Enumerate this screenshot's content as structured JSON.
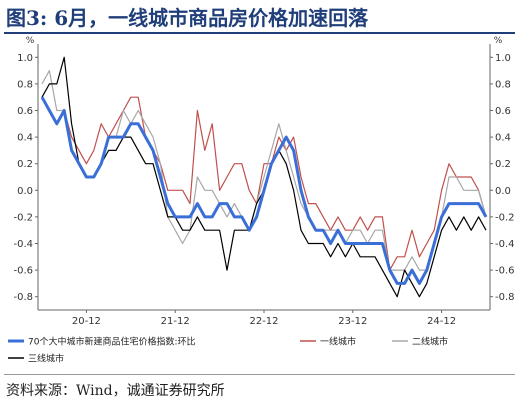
{
  "figure": {
    "title": "图3:   6月，一线城市商品房价格加速回落",
    "source": "资料来源：Wind，诚通证券研究所"
  },
  "chart_data": {
    "type": "line",
    "unit_left": "%",
    "unit_right": "%",
    "ylim": [
      -0.9,
      1.1
    ],
    "yticks": [
      -0.8,
      -0.6,
      -0.4,
      -0.2,
      0.0,
      0.2,
      0.4,
      0.6,
      0.8,
      1.0
    ],
    "ytick_labels": [
      "-0.8",
      "-0.6",
      "-0.4",
      "-0.2",
      "0.0",
      "0.2",
      "0.4",
      "0.6",
      "0.8",
      "1.0"
    ],
    "xtick_labels": [
      "20-12",
      "21-12",
      "22-12",
      "23-12",
      "24-12"
    ],
    "xtick_index": [
      6,
      18,
      30,
      42,
      54
    ],
    "grid": false,
    "legend_position": "bottom",
    "series": [
      {
        "name": "70个大中城市新建商品住宅价格指数:环比",
        "color": "#3b6fd8",
        "width": 3,
        "values": [
          0.7,
          0.6,
          0.5,
          0.6,
          0.3,
          0.2,
          0.1,
          0.1,
          0.2,
          0.4,
          0.4,
          0.4,
          0.5,
          0.5,
          0.4,
          0.3,
          0.1,
          -0.1,
          -0.2,
          -0.2,
          -0.2,
          -0.1,
          -0.2,
          -0.2,
          -0.1,
          -0.1,
          -0.2,
          -0.2,
          -0.3,
          -0.2,
          0.0,
          0.2,
          0.3,
          0.4,
          0.3,
          0.0,
          -0.2,
          -0.3,
          -0.3,
          -0.4,
          -0.3,
          -0.4,
          -0.4,
          -0.4,
          -0.4,
          -0.4,
          -0.4,
          -0.6,
          -0.7,
          -0.7,
          -0.6,
          -0.7,
          -0.6,
          -0.4,
          -0.2,
          -0.1,
          -0.1,
          -0.1,
          -0.1,
          -0.1,
          -0.2
        ]
      },
      {
        "name": "一线城市",
        "color": "#c0504d",
        "width": 1.2,
        "values": [
          0.7,
          0.6,
          0.5,
          0.6,
          0.4,
          0.3,
          0.2,
          0.3,
          0.5,
          0.4,
          0.5,
          0.6,
          0.7,
          0.7,
          0.4,
          0.3,
          0.2,
          0.0,
          0.0,
          0.0,
          -0.1,
          0.6,
          0.3,
          0.5,
          0.0,
          0.1,
          0.2,
          0.2,
          0.0,
          -0.1,
          0.2,
          0.2,
          0.4,
          0.3,
          0.4,
          0.1,
          -0.1,
          -0.1,
          -0.2,
          -0.3,
          -0.2,
          -0.3,
          -0.3,
          -0.2,
          -0.3,
          -0.2,
          -0.2,
          -0.6,
          -0.5,
          -0.5,
          -0.3,
          -0.5,
          -0.4,
          -0.3,
          0.0,
          0.2,
          0.1,
          0.1,
          0.1,
          0.0,
          -0.2
        ]
      },
      {
        "name": "二线城市",
        "color": "#a8a8a8",
        "width": 1.2,
        "values": [
          0.8,
          0.9,
          0.6,
          0.6,
          0.3,
          0.2,
          0.1,
          0.1,
          0.2,
          0.4,
          0.4,
          0.6,
          0.5,
          0.6,
          0.5,
          0.4,
          0.2,
          -0.2,
          -0.3,
          -0.4,
          -0.3,
          0.1,
          0.0,
          0.0,
          -0.1,
          -0.2,
          -0.1,
          -0.2,
          -0.3,
          -0.1,
          0.1,
          0.3,
          0.5,
          0.3,
          0.1,
          -0.1,
          -0.2,
          -0.3,
          -0.3,
          -0.3,
          -0.3,
          -0.4,
          -0.3,
          -0.3,
          -0.4,
          -0.3,
          -0.3,
          -0.6,
          -0.6,
          -0.6,
          -0.5,
          -0.6,
          -0.6,
          -0.4,
          -0.2,
          0.1,
          0.1,
          0.0,
          0.0,
          0.0,
          -0.2
        ]
      },
      {
        "name": "三线城市",
        "color": "#000000",
        "width": 1.2,
        "values": [
          0.7,
          0.8,
          0.8,
          1.0,
          0.5,
          0.2,
          0.1,
          0.1,
          0.2,
          0.3,
          0.3,
          0.4,
          0.4,
          0.3,
          0.2,
          0.2,
          0.0,
          -0.2,
          -0.2,
          -0.3,
          -0.3,
          -0.2,
          -0.3,
          -0.3,
          -0.3,
          -0.6,
          -0.3,
          -0.3,
          -0.3,
          -0.1,
          0.0,
          0.2,
          0.3,
          0.2,
          0.0,
          -0.3,
          -0.4,
          -0.4,
          -0.4,
          -0.5,
          -0.4,
          -0.5,
          -0.4,
          -0.5,
          -0.5,
          -0.5,
          -0.6,
          -0.7,
          -0.8,
          -0.6,
          -0.7,
          -0.8,
          -0.7,
          -0.5,
          -0.3,
          -0.2,
          -0.3,
          -0.2,
          -0.3,
          -0.2,
          -0.3
        ]
      }
    ]
  }
}
